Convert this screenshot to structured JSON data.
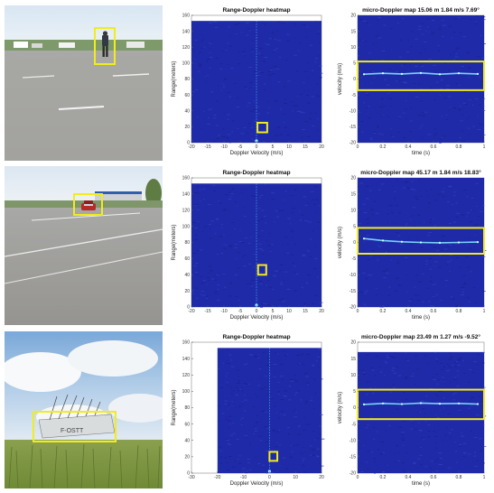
{
  "colors": {
    "highlight_box": "#f2ec1c",
    "heatmap_background": "#1f2aa8",
    "heatmap_dark": "#1a1f8a",
    "signal": "#7fe6ff",
    "zero_line": "#41b7ff"
  },
  "photos": [
    {
      "scene": "parking-lot-pedestrian",
      "target": "pedestrian"
    },
    {
      "scene": "parking-lot-car",
      "target": "car"
    },
    {
      "scene": "meadow-drone",
      "target": "drone",
      "visible_text": "F-OSTT"
    }
  ],
  "chart_data": [
    {
      "type": "heatmap",
      "title": "Range-Doppler heatmap",
      "xlabel": "Doppler Velocity (m/s)",
      "ylabel": "Range(meters)",
      "xlim": [
        -20,
        20
      ],
      "ylim": [
        0,
        160
      ],
      "xticks": [
        -20,
        -15,
        -10,
        -5,
        0,
        5,
        10,
        15,
        20
      ],
      "yticks": [
        0,
        20,
        40,
        60,
        80,
        100,
        120,
        140,
        160
      ],
      "data_extent_x": [
        -20,
        20
      ],
      "data_extent_y": [
        0,
        153
      ],
      "zero_doppler_line": 0,
      "highlight_box": {
        "x": [
          0.3,
          3.3
        ],
        "y": [
          13,
          25
        ]
      }
    },
    {
      "type": "heatmap",
      "title": "micro-Doppler map 15.06 m 1.84 m/s 7.69°",
      "xlabel": "time (s)",
      "ylabel": "velocity (m/s)",
      "xlim": [
        0,
        1
      ],
      "ylim": [
        -20,
        20
      ],
      "xticks": [
        0,
        0.2,
        0.4,
        0.6,
        0.8,
        1
      ],
      "yticks": [
        -20,
        -15,
        -10,
        -5,
        0,
        5,
        10,
        15,
        20
      ],
      "signature": {
        "t": [
          0.05,
          0.2,
          0.35,
          0.5,
          0.65,
          0.8,
          0.95
        ],
        "v": [
          1.5,
          1.8,
          1.6,
          1.9,
          1.5,
          1.8,
          1.6
        ]
      },
      "highlight_box": {
        "x": [
          0.0,
          1.0
        ],
        "y": [
          -3.5,
          5.5
        ]
      }
    },
    {
      "type": "heatmap",
      "title": "Range-Doppler heatmap",
      "xlabel": "Doppler Velocity (m/s)",
      "ylabel": "Range(meters)",
      "xlim": [
        -20,
        20
      ],
      "ylim": [
        0,
        160
      ],
      "xticks": [
        -20,
        -15,
        -10,
        -5,
        0,
        5,
        10,
        15,
        20
      ],
      "yticks": [
        0,
        20,
        40,
        60,
        80,
        100,
        120,
        140,
        160
      ],
      "data_extent_x": [
        -20,
        20
      ],
      "data_extent_y": [
        0,
        153
      ],
      "zero_doppler_line": 0,
      "highlight_box": {
        "x": [
          0.5,
          3.0
        ],
        "y": [
          40,
          52
        ]
      }
    },
    {
      "type": "heatmap",
      "title": "micro-Doppler map 45.17 m 1.84 m/s 18.83°",
      "xlabel": "time (s)",
      "ylabel": "velocity (m/s)",
      "xlim": [
        0,
        1
      ],
      "ylim": [
        -20,
        20
      ],
      "xticks": [
        0,
        0.2,
        0.4,
        0.6,
        0.8,
        1
      ],
      "yticks": [
        -20,
        -15,
        -10,
        -5,
        0,
        5,
        10,
        15,
        20
      ],
      "signature": {
        "t": [
          0.05,
          0.2,
          0.35,
          0.5,
          0.65,
          0.8,
          0.95
        ],
        "v": [
          1.2,
          0.6,
          0.2,
          0.0,
          -0.1,
          0.0,
          0.1
        ]
      },
      "highlight_box": {
        "x": [
          0.0,
          1.0
        ],
        "y": [
          -3.5,
          4.5
        ]
      }
    },
    {
      "type": "heatmap",
      "title": "Range-Doppler heatmap",
      "xlabel": "Doppler Velocity (m/s)",
      "ylabel": "Range(meters)",
      "xlim": [
        -30,
        20
      ],
      "ylim": [
        0,
        160
      ],
      "xticks": [
        -30,
        -20,
        -10,
        0,
        10,
        20
      ],
      "yticks": [
        0,
        20,
        40,
        60,
        80,
        100,
        120,
        140,
        160
      ],
      "data_extent_x": [
        -20,
        20
      ],
      "data_extent_y": [
        0,
        153
      ],
      "zero_doppler_line": 0,
      "highlight_box": {
        "x": [
          0.0,
          3.0
        ],
        "y": [
          15,
          26
        ]
      }
    },
    {
      "type": "heatmap",
      "title": "micro-Doppler map 23.49 m 1.27 m/s -9.52°",
      "xlabel": "time (s)",
      "ylabel": "velocity (m/s)",
      "xlim": [
        0,
        1
      ],
      "ylim": [
        -20,
        20
      ],
      "xticks": [
        0,
        0.2,
        0.4,
        0.6,
        0.8,
        1
      ],
      "yticks": [
        -20,
        -15,
        -10,
        -5,
        0,
        5,
        10,
        15,
        20
      ],
      "data_extent_x": [
        0,
        1
      ],
      "data_extent_y": [
        -20,
        17
      ],
      "signature": {
        "t": [
          0.05,
          0.2,
          0.35,
          0.5,
          0.65,
          0.8,
          0.95
        ],
        "v": [
          1.0,
          1.3,
          1.1,
          1.4,
          1.2,
          1.3,
          1.1
        ]
      },
      "highlight_box": {
        "x": [
          0.0,
          1.0
        ],
        "y": [
          -3.5,
          5.5
        ]
      }
    }
  ]
}
